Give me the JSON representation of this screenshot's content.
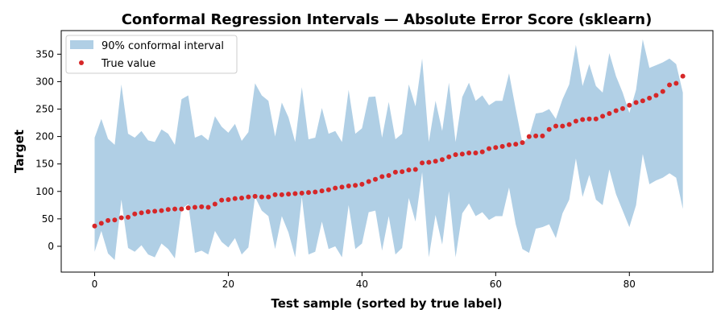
{
  "chart_data": {
    "type": "scatter",
    "title": "Conformal Regression Intervals — Absolute Error Score (sklearn)",
    "xlabel": "Test sample (sorted by true label)",
    "ylabel": "Target",
    "xlim": [
      -5,
      92.5
    ],
    "ylim": [
      -47,
      393
    ],
    "xticks": [
      0,
      20,
      40,
      60,
      80
    ],
    "yticks": [
      0,
      50,
      100,
      150,
      200,
      250,
      300,
      350
    ],
    "grid": false,
    "legend_position": "upper-left",
    "legend": [
      {
        "label": "90% conformal interval",
        "kind": "area",
        "color": "#b0cfe5"
      },
      {
        "label": "True value",
        "kind": "point",
        "color": "#d62728"
      }
    ],
    "series": [
      {
        "name": "90% conformal interval",
        "kind": "area",
        "color": "#b0cfe5",
        "x": [
          0,
          1,
          2,
          3,
          4,
          5,
          6,
          7,
          8,
          9,
          10,
          11,
          12,
          13,
          14,
          15,
          16,
          17,
          18,
          19,
          20,
          21,
          22,
          23,
          24,
          25,
          26,
          27,
          28,
          29,
          30,
          31,
          32,
          33,
          34,
          35,
          36,
          37,
          38,
          39,
          40,
          41,
          42,
          43,
          44,
          45,
          46,
          47,
          48,
          49,
          50,
          51,
          52,
          53,
          54,
          55,
          56,
          57,
          58,
          59,
          60,
          61,
          62,
          63,
          64,
          65,
          66,
          67,
          68,
          69,
          70,
          71,
          72,
          73,
          74,
          75,
          76,
          77,
          78,
          79,
          80,
          81,
          82,
          83,
          84,
          85,
          86,
          87,
          88
        ],
        "upper": [
          198,
          232,
          196,
          185,
          295,
          205,
          198,
          210,
          193,
          190,
          213,
          205,
          185,
          268,
          275,
          198,
          203,
          193,
          237,
          218,
          207,
          223,
          192,
          208,
          297,
          275,
          265,
          200,
          262,
          235,
          190,
          290,
          195,
          198,
          252,
          205,
          210,
          190,
          285,
          205,
          215,
          272,
          273,
          198,
          263,
          195,
          205,
          295,
          255,
          342,
          190,
          265,
          210,
          298,
          190,
          272,
          298,
          265,
          275,
          257,
          265,
          265,
          315,
          250,
          188,
          200,
          242,
          244,
          250,
          232,
          268,
          295,
          367,
          292,
          332,
          292,
          280,
          352,
          310,
          280,
          243,
          285,
          377,
          325,
          330,
          335,
          342,
          332,
          280
        ],
        "lower": [
          -10,
          28,
          -13,
          -25,
          85,
          -3,
          -10,
          2,
          -15,
          -20,
          5,
          -5,
          -22,
          68,
          77,
          -12,
          -8,
          -15,
          28,
          8,
          -2,
          15,
          -15,
          -2,
          90,
          65,
          55,
          -5,
          55,
          25,
          -20,
          90,
          -15,
          -10,
          45,
          -5,
          0,
          -20,
          75,
          -5,
          5,
          62,
          65,
          -8,
          55,
          -15,
          -3,
          88,
          45,
          135,
          -20,
          57,
          3,
          100,
          -20,
          60,
          78,
          55,
          62,
          48,
          55,
          55,
          107,
          40,
          -5,
          -12,
          32,
          35,
          40,
          15,
          60,
          85,
          160,
          90,
          130,
          85,
          75,
          140,
          95,
          65,
          35,
          75,
          168,
          113,
          120,
          125,
          133,
          125,
          68
        ]
      },
      {
        "name": "True value",
        "kind": "point",
        "color": "#d62728",
        "x": [
          0,
          1,
          2,
          3,
          4,
          5,
          6,
          7,
          8,
          9,
          10,
          11,
          12,
          13,
          14,
          15,
          16,
          17,
          18,
          19,
          20,
          21,
          22,
          23,
          24,
          25,
          26,
          27,
          28,
          29,
          30,
          31,
          32,
          33,
          34,
          35,
          36,
          37,
          38,
          39,
          40,
          41,
          42,
          43,
          44,
          45,
          46,
          47,
          48,
          49,
          50,
          51,
          52,
          53,
          54,
          55,
          56,
          57,
          58,
          59,
          60,
          61,
          62,
          63,
          64,
          65,
          66,
          67,
          68,
          69,
          70,
          71,
          72,
          73,
          74,
          75,
          76,
          77,
          78,
          79,
          80,
          81,
          82,
          83,
          84,
          85,
          86,
          87,
          88
        ],
        "values": [
          37,
          42,
          47,
          48,
          52,
          53,
          59,
          61,
          63,
          64,
          65,
          67,
          68,
          68,
          70,
          71,
          72,
          71,
          77,
          84,
          85,
          87,
          88,
          90,
          91,
          90,
          90,
          94,
          94,
          95,
          96,
          97,
          98,
          99,
          101,
          103,
          106,
          108,
          110,
          111,
          113,
          118,
          122,
          127,
          129,
          135,
          136,
          139,
          140,
          152,
          153,
          155,
          158,
          163,
          167,
          168,
          170,
          170,
          172,
          178,
          180,
          182,
          185,
          186,
          189,
          200,
          201,
          201,
          213,
          219,
          219,
          222,
          228,
          231,
          232,
          232,
          237,
          242,
          247,
          251,
          257,
          262,
          265,
          270,
          275,
          282,
          294,
          297,
          310
        ]
      }
    ]
  }
}
